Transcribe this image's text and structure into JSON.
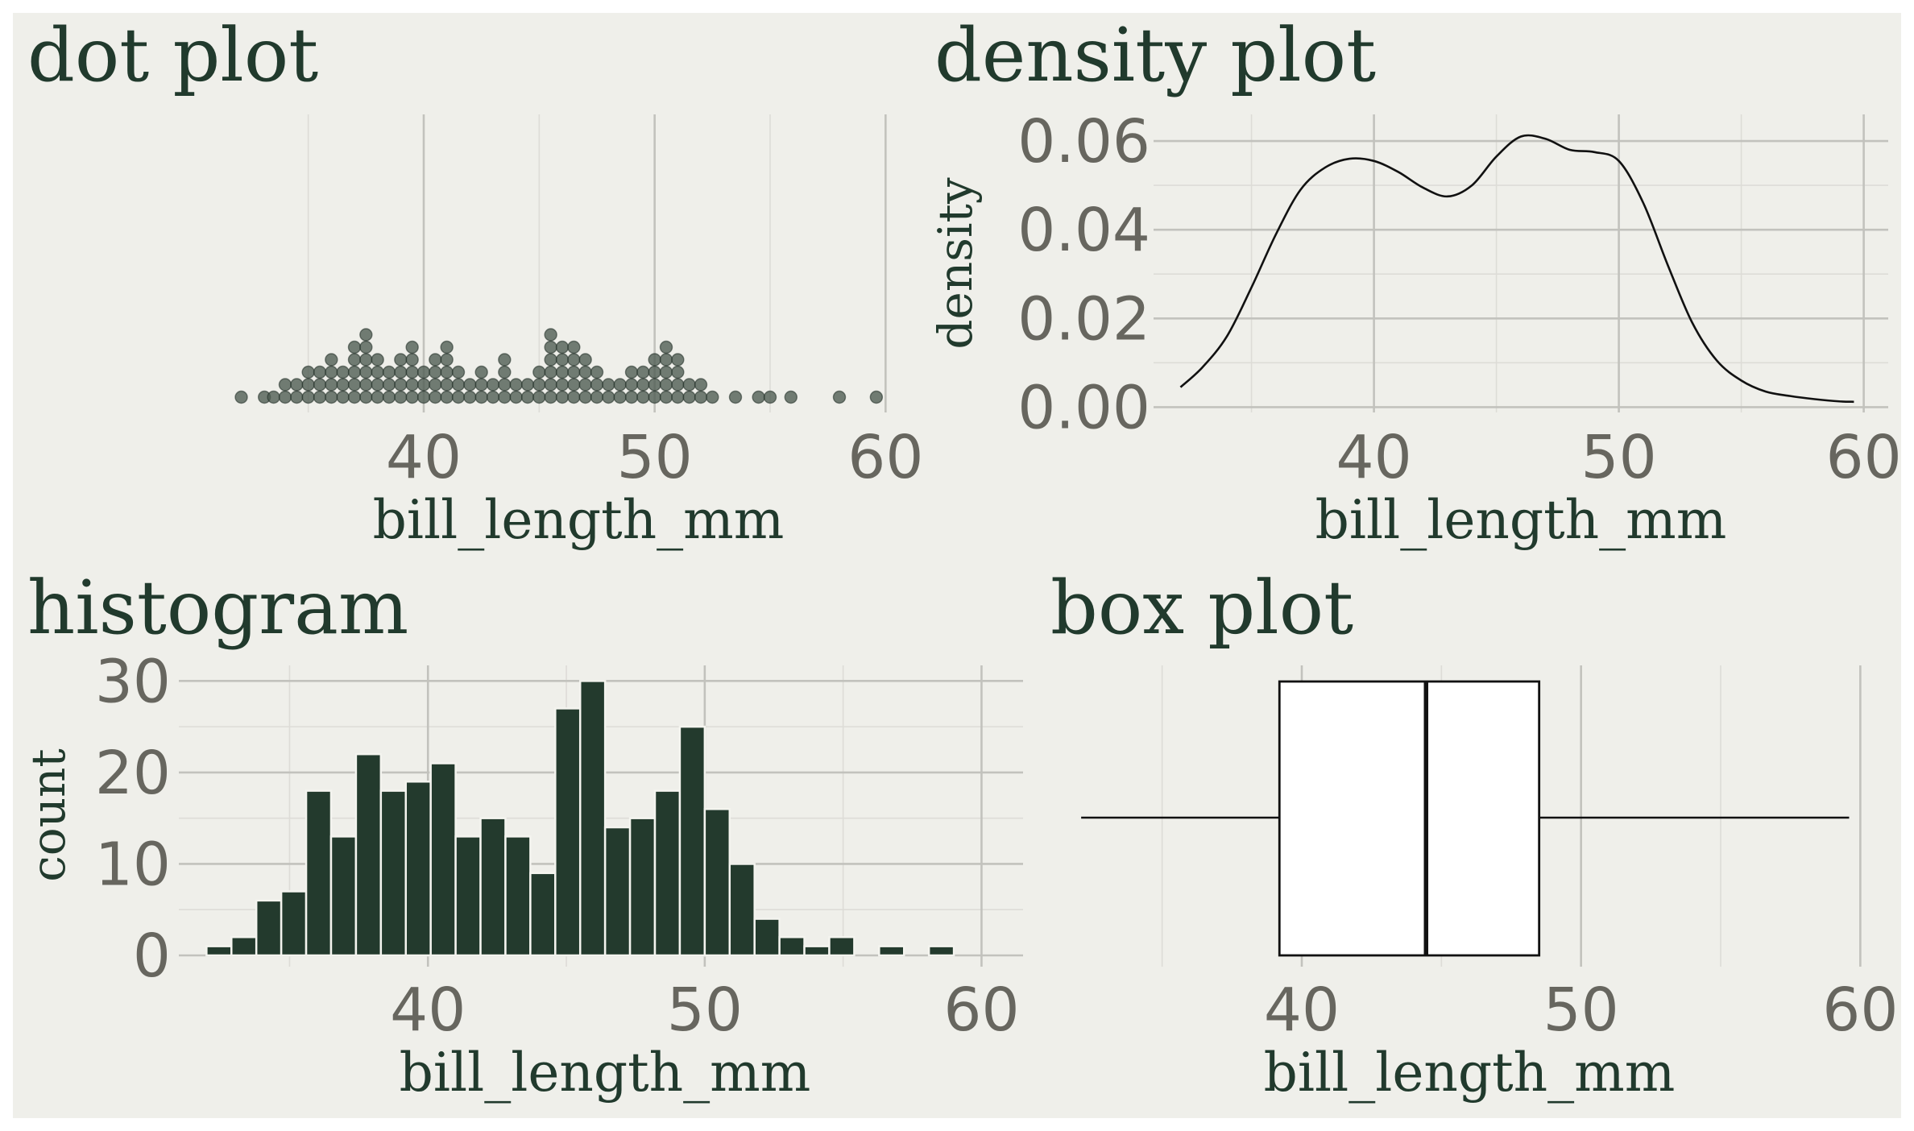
{
  "chart_data": [
    {
      "type": "scatter",
      "title": "dot plot",
      "xlabel": "bill_length_mm",
      "ylabel": "",
      "xlim": [
        31,
        61
      ],
      "xticks": [
        "40",
        "50",
        "60"
      ],
      "stacks": [
        {
          "x": 32.1,
          "n": 1
        },
        {
          "x": 33.1,
          "n": 1
        },
        {
          "x": 33.5,
          "n": 1
        },
        {
          "x": 34.0,
          "n": 2
        },
        {
          "x": 34.5,
          "n": 2
        },
        {
          "x": 35.0,
          "n": 3
        },
        {
          "x": 35.5,
          "n": 3
        },
        {
          "x": 36.0,
          "n": 4
        },
        {
          "x": 36.5,
          "n": 3
        },
        {
          "x": 37.0,
          "n": 5
        },
        {
          "x": 37.5,
          "n": 6
        },
        {
          "x": 38.0,
          "n": 4
        },
        {
          "x": 38.5,
          "n": 3
        },
        {
          "x": 39.0,
          "n": 4
        },
        {
          "x": 39.5,
          "n": 5
        },
        {
          "x": 40.0,
          "n": 3
        },
        {
          "x": 40.5,
          "n": 4
        },
        {
          "x": 41.0,
          "n": 5
        },
        {
          "x": 41.5,
          "n": 3
        },
        {
          "x": 42.0,
          "n": 2
        },
        {
          "x": 42.5,
          "n": 3
        },
        {
          "x": 43.0,
          "n": 2
        },
        {
          "x": 43.5,
          "n": 4
        },
        {
          "x": 44.0,
          "n": 2
        },
        {
          "x": 44.5,
          "n": 2
        },
        {
          "x": 45.0,
          "n": 3
        },
        {
          "x": 45.5,
          "n": 6
        },
        {
          "x": 46.0,
          "n": 5
        },
        {
          "x": 46.5,
          "n": 5
        },
        {
          "x": 47.0,
          "n": 4
        },
        {
          "x": 47.5,
          "n": 3
        },
        {
          "x": 48.0,
          "n": 2
        },
        {
          "x": 48.5,
          "n": 2
        },
        {
          "x": 49.0,
          "n": 3
        },
        {
          "x": 49.5,
          "n": 3
        },
        {
          "x": 50.0,
          "n": 4
        },
        {
          "x": 50.5,
          "n": 5
        },
        {
          "x": 51.0,
          "n": 4
        },
        {
          "x": 51.5,
          "n": 2
        },
        {
          "x": 52.0,
          "n": 2
        },
        {
          "x": 52.5,
          "n": 1
        },
        {
          "x": 53.5,
          "n": 1
        },
        {
          "x": 54.5,
          "n": 1
        },
        {
          "x": 55.0,
          "n": 1
        },
        {
          "x": 55.9,
          "n": 1
        },
        {
          "x": 58.0,
          "n": 1
        },
        {
          "x": 59.6,
          "n": 1
        }
      ]
    },
    {
      "type": "line",
      "title": "density plot",
      "xlabel": "bill_length_mm",
      "ylabel": "density",
      "xlim": [
        31,
        61
      ],
      "ylim": [
        -0.0012,
        0.066
      ],
      "xticks": [
        "40",
        "50",
        "60"
      ],
      "yticks": [
        "0.00",
        "0.02",
        "0.04",
        "0.06"
      ],
      "x": [
        32.1,
        33,
        34,
        35,
        36,
        37,
        38,
        39,
        40,
        41,
        42,
        43,
        44,
        45,
        46,
        47,
        48,
        49,
        50,
        51,
        52,
        53,
        54,
        55,
        56,
        57,
        58,
        59,
        59.6
      ],
      "y": [
        0.0045,
        0.009,
        0.016,
        0.027,
        0.039,
        0.049,
        0.054,
        0.056,
        0.0555,
        0.053,
        0.0495,
        0.0475,
        0.05,
        0.0565,
        0.061,
        0.0605,
        0.058,
        0.0575,
        0.0555,
        0.046,
        0.032,
        0.019,
        0.0105,
        0.006,
        0.0035,
        0.0025,
        0.0018,
        0.0013,
        0.0012
      ]
    },
    {
      "type": "bar",
      "title": "histogram",
      "xlabel": "bill_length_mm",
      "ylabel": "count",
      "xlim": [
        31,
        61.5
      ],
      "ylim": [
        0,
        31
      ],
      "binwidth": 0.9,
      "xticks": [
        "40",
        "50",
        "60"
      ],
      "yticks": [
        "0",
        "10",
        "20",
        "30"
      ],
      "bin_starts": [
        32.0,
        32.9,
        33.8,
        34.7,
        35.6,
        36.5,
        37.4,
        38.3,
        39.2,
        40.1,
        41.0,
        41.9,
        42.8,
        43.7,
        44.6,
        45.5,
        46.4,
        47.3,
        48.2,
        49.1,
        50.0,
        50.9,
        51.8,
        52.7,
        53.6,
        54.5,
        55.4,
        56.3,
        57.2,
        58.1,
        59.0
      ],
      "counts": [
        1,
        2,
        6,
        7,
        18,
        13,
        22,
        18,
        19,
        21,
        13,
        15,
        13,
        9,
        27,
        30,
        14,
        15,
        18,
        25,
        16,
        10,
        4,
        2,
        1,
        2,
        0,
        1,
        0,
        1,
        0
      ]
    },
    {
      "type": "box",
      "title": "box plot",
      "xlabel": "bill_length_mm",
      "xlim": [
        31,
        61
      ],
      "xticks": [
        "40",
        "50",
        "60"
      ],
      "min": 32.1,
      "q1": 39.2,
      "median": 44.45,
      "q3": 48.5,
      "max": 59.6
    }
  ],
  "colors": {
    "panel_bg": "#efefea",
    "ink": "#213a2d",
    "tick_text": "#67665f",
    "bar_fill": "#233a2d",
    "dot_fill": "#4b5a4f"
  }
}
